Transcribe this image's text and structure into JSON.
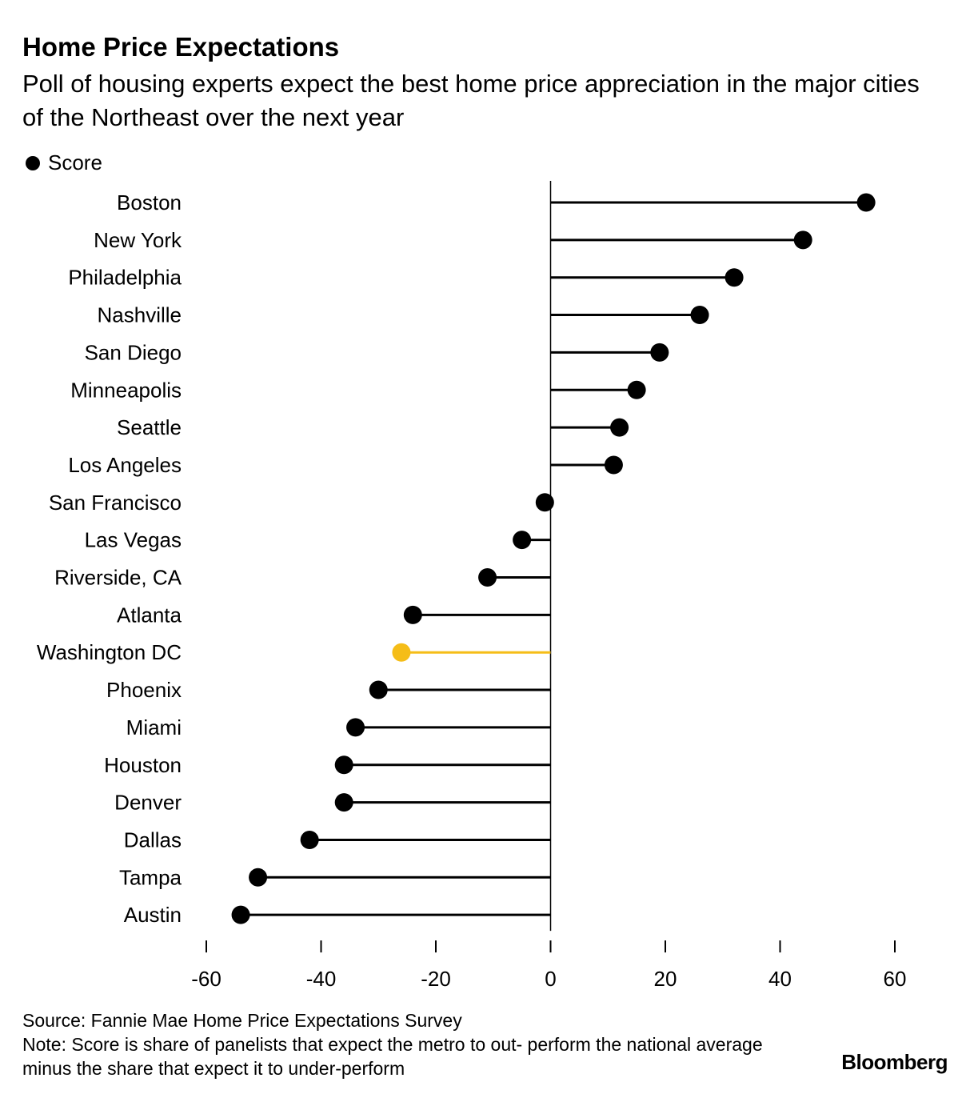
{
  "title": "Home Price Expectations",
  "subtitle": "Poll of housing experts expect the best home price appreciation in the major cities of the Northeast over the next year",
  "legend": {
    "label": "Score"
  },
  "chart_data": {
    "type": "lollipop",
    "orientation": "horizontal",
    "categories": [
      "Boston",
      "New York",
      "Philadelphia",
      "Nashville",
      "San Diego",
      "Minneapolis",
      "Seattle",
      "Los Angeles",
      "San Francisco",
      "Las Vegas",
      "Riverside, CA",
      "Atlanta",
      "Washington DC",
      "Phoenix",
      "Miami",
      "Houston",
      "Denver",
      "Dallas",
      "Tampa",
      "Austin"
    ],
    "series": [
      {
        "name": "Score",
        "values": [
          55,
          44,
          32,
          26,
          19,
          15,
          12,
          11,
          -1,
          -5,
          -11,
          -24,
          -26,
          -30,
          -34,
          -36,
          -36,
          -42,
          -51,
          -54
        ]
      }
    ],
    "highlight": {
      "category": "Washington DC",
      "color": "#F5BD18"
    },
    "colors": {
      "default": "#000000",
      "highlight": "#F5BD18"
    },
    "xlim": [
      -60,
      60
    ],
    "xticks": [
      -60,
      -40,
      -20,
      0,
      20,
      40,
      60
    ],
    "xticklabels": [
      "-60",
      "-40",
      "-20",
      "0",
      "20",
      "40",
      "60"
    ]
  },
  "footer": {
    "source": "Source: Fannie Mae Home Price Expectations Survey",
    "note": "Note: Score is share of panelists that expect the metro to out- perform the national average minus the share that expect it to under-perform"
  },
  "brand": "Bloomberg"
}
